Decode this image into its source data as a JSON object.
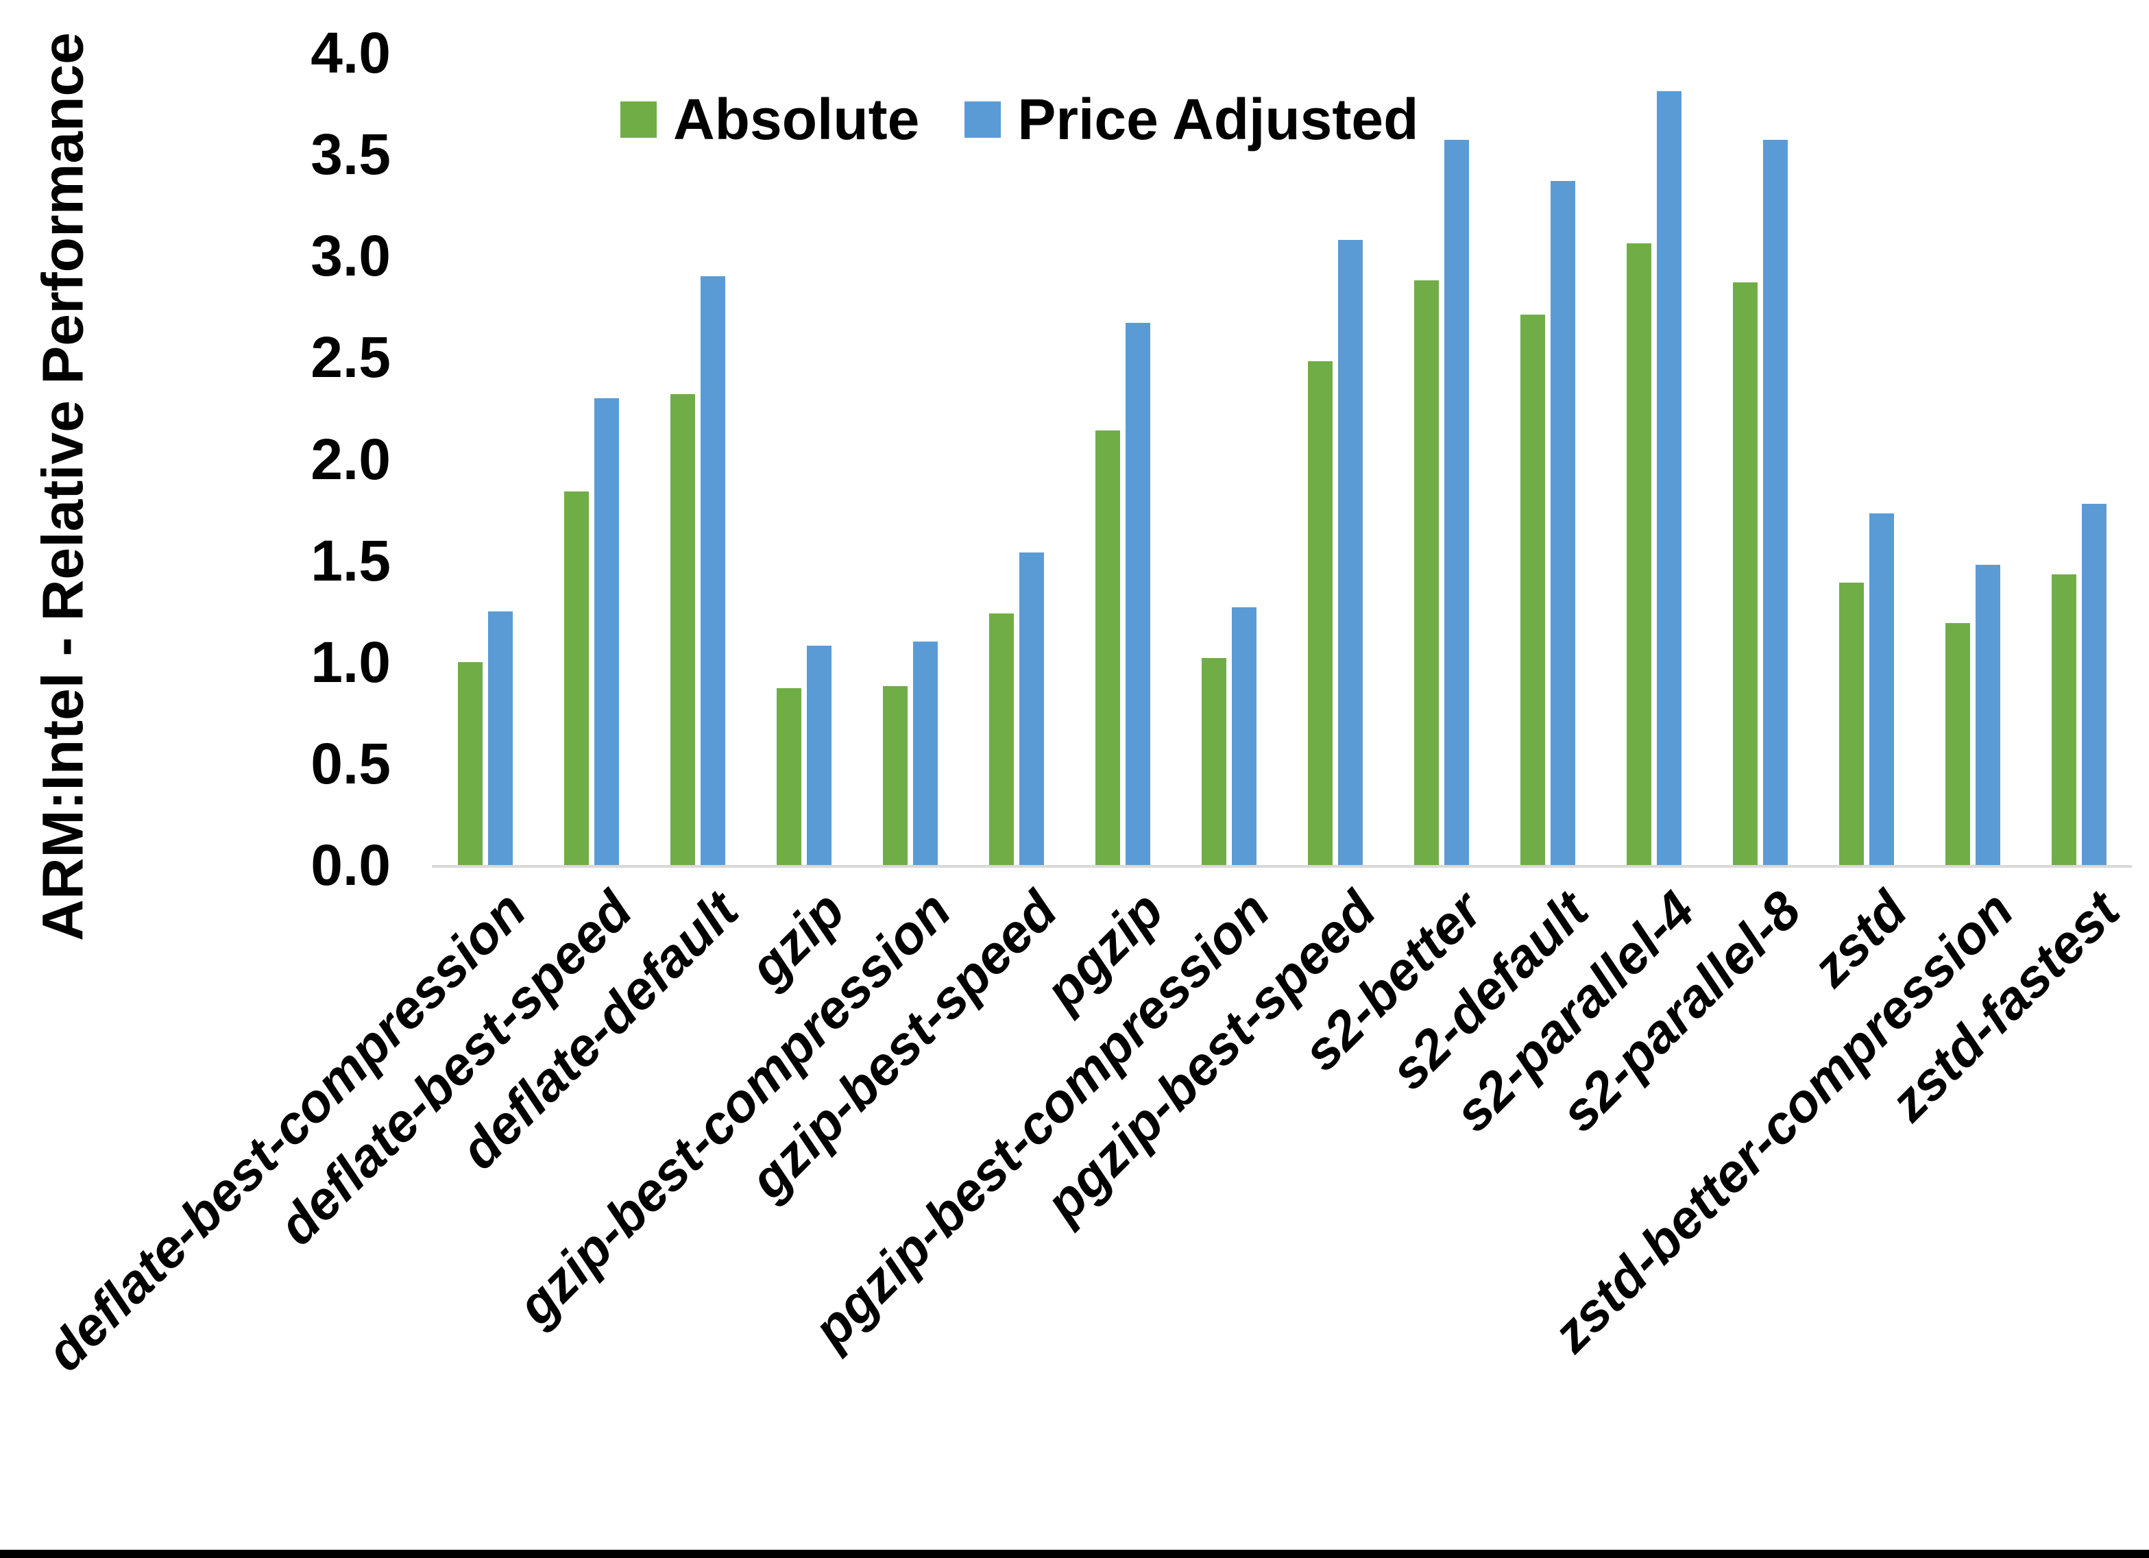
{
  "chart_data": {
    "type": "bar",
    "title": "",
    "xlabel": "",
    "ylabel": "ARM:Intel - Relative Performance",
    "ylim": [
      0.0,
      4.0
    ],
    "ytick_step": 0.5,
    "ytick_labels": [
      "0.0",
      "0.5",
      "1.0",
      "1.5",
      "2.0",
      "2.5",
      "3.0",
      "3.5",
      "4.0"
    ],
    "grid": false,
    "legend_position": "top-center",
    "categories": [
      "deflate-best-compression",
      "deflate-best-speed",
      "deflate-default",
      "gzip",
      "gzip-best-compression",
      "gzip-best-speed",
      "pgzip",
      "pgzip-best-compression",
      "pgzip-best-speed",
      "s2-better",
      "s2-default",
      "s2-parallel-4",
      "s2-parallel-8",
      "zstd",
      "zstd-better-compression",
      "zstd-fastest"
    ],
    "series": [
      {
        "name": "Absolute",
        "color": "#70AD47",
        "values": [
          1.0,
          1.84,
          2.32,
          0.87,
          0.88,
          1.24,
          2.14,
          1.02,
          2.48,
          2.88,
          2.71,
          3.06,
          2.87,
          1.39,
          1.19,
          1.43
        ]
      },
      {
        "name": "Price Adjusted",
        "color": "#5B9BD5",
        "values": [
          1.25,
          2.3,
          2.9,
          1.08,
          1.1,
          1.54,
          2.67,
          1.27,
          3.08,
          3.57,
          3.37,
          3.81,
          3.57,
          1.73,
          1.48,
          1.78
        ]
      }
    ]
  },
  "colors": {
    "background": "#FFFFFF",
    "axis_line": "#D9D9D9",
    "text": "#000000",
    "bottom_edge": "#000000"
  }
}
